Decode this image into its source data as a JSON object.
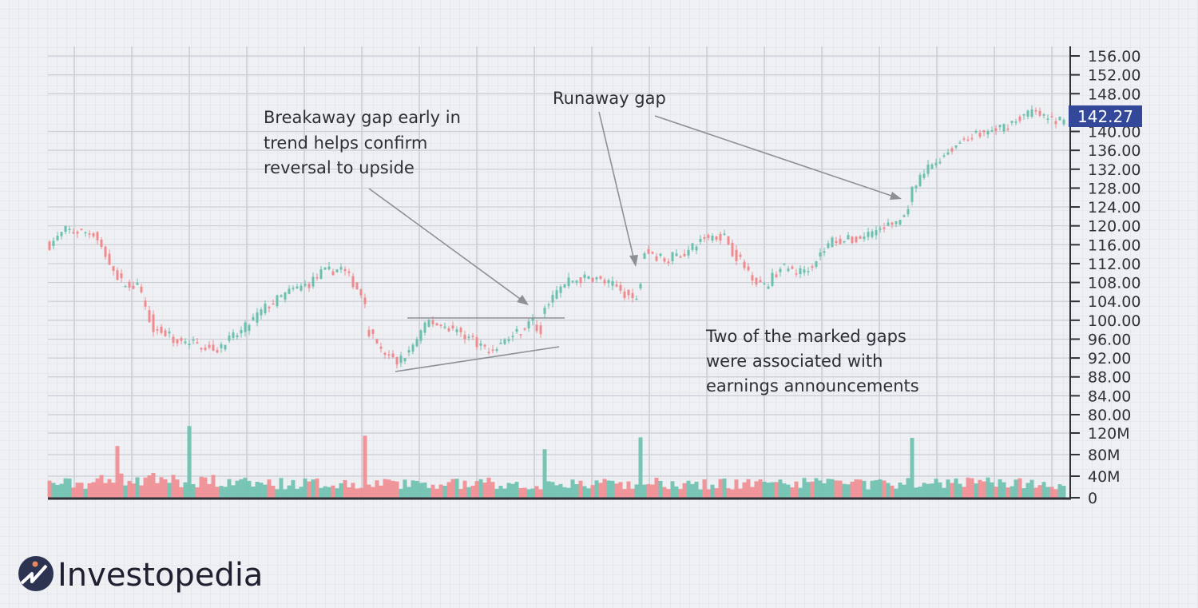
{
  "chart_data": {
    "type": "candlestick",
    "title": "",
    "xlabel": "",
    "ylabel": "",
    "price_axis": {
      "ticks": [
        "156.00",
        "152.00",
        "148.00",
        "140.00",
        "136.00",
        "132.00",
        "128.00",
        "124.00",
        "120.00",
        "116.00",
        "112.00",
        "108.00",
        "104.00",
        "100.00",
        "96.00",
        "92.00",
        "88.00",
        "84.00",
        "80.00"
      ],
      "ylim": [
        80,
        156
      ]
    },
    "volume_axis": {
      "ticks": [
        "120M",
        "80M",
        "40M",
        "0"
      ],
      "ylim_millions": [
        0,
        120
      ]
    },
    "last_price": "142.27",
    "candle_count": 255,
    "close_keypoints": [
      [
        0,
        116
      ],
      [
        4,
        119
      ],
      [
        11,
        118.5
      ],
      [
        15,
        112
      ],
      [
        18,
        108
      ],
      [
        22,
        107
      ],
      [
        26,
        98.5
      ],
      [
        31,
        96
      ],
      [
        36,
        95
      ],
      [
        42,
        94
      ],
      [
        48,
        97.6
      ],
      [
        54,
        102.7
      ],
      [
        60,
        106
      ],
      [
        65,
        107.8
      ],
      [
        68,
        110
      ],
      [
        73,
        111
      ],
      [
        76,
        108
      ],
      [
        79,
        104.4
      ],
      [
        80,
        97.6
      ],
      [
        83,
        93.4
      ],
      [
        87,
        91
      ],
      [
        90,
        93.4
      ],
      [
        95,
        99.8
      ],
      [
        100,
        98.5
      ],
      [
        106,
        96
      ],
      [
        110,
        93.4
      ],
      [
        116,
        96.8
      ],
      [
        121,
        99.8
      ],
      [
        123,
        97
      ],
      [
        124,
        103.5
      ],
      [
        130,
        108.3
      ],
      [
        136,
        109.1
      ],
      [
        142,
        107
      ],
      [
        147,
        104
      ],
      [
        148,
        108.6
      ],
      [
        149,
        114.6
      ],
      [
        154,
        112.9
      ],
      [
        160,
        114.6
      ],
      [
        164,
        117.6
      ],
      [
        169,
        118
      ],
      [
        171,
        114.6
      ],
      [
        175,
        110.3
      ],
      [
        179,
        107
      ],
      [
        183,
        111.2
      ],
      [
        188,
        110.3
      ],
      [
        191,
        112
      ],
      [
        196,
        117
      ],
      [
        202,
        117
      ],
      [
        206,
        118.8
      ],
      [
        210,
        120
      ],
      [
        214,
        121.8
      ],
      [
        216,
        127.2
      ],
      [
        220,
        132.3
      ],
      [
        226,
        136.5
      ],
      [
        230,
        139
      ],
      [
        236,
        140
      ],
      [
        240,
        141.6
      ],
      [
        246,
        144.2
      ],
      [
        250,
        142.5
      ],
      [
        254,
        142.27
      ]
    ],
    "volume_baseline_millions": 28,
    "volume_spikes_millions": [
      [
        17,
        96
      ],
      [
        35,
        133
      ],
      [
        79,
        115
      ],
      [
        124,
        90
      ],
      [
        148,
        112
      ],
      [
        216,
        111
      ]
    ],
    "up_color": "#6cc0ae",
    "down_color": "#ef8b8f",
    "annotations": {
      "breakaway": [
        "Breakaway gap early in",
        "trend helps confirm",
        "reversal to upside"
      ],
      "runaway": "Runaway gap",
      "earnings": [
        "Two of the marked gaps",
        "were associated with",
        "earnings announcements"
      ]
    }
  },
  "brand": {
    "name": "Investopedia",
    "label_color": "#34489a"
  }
}
